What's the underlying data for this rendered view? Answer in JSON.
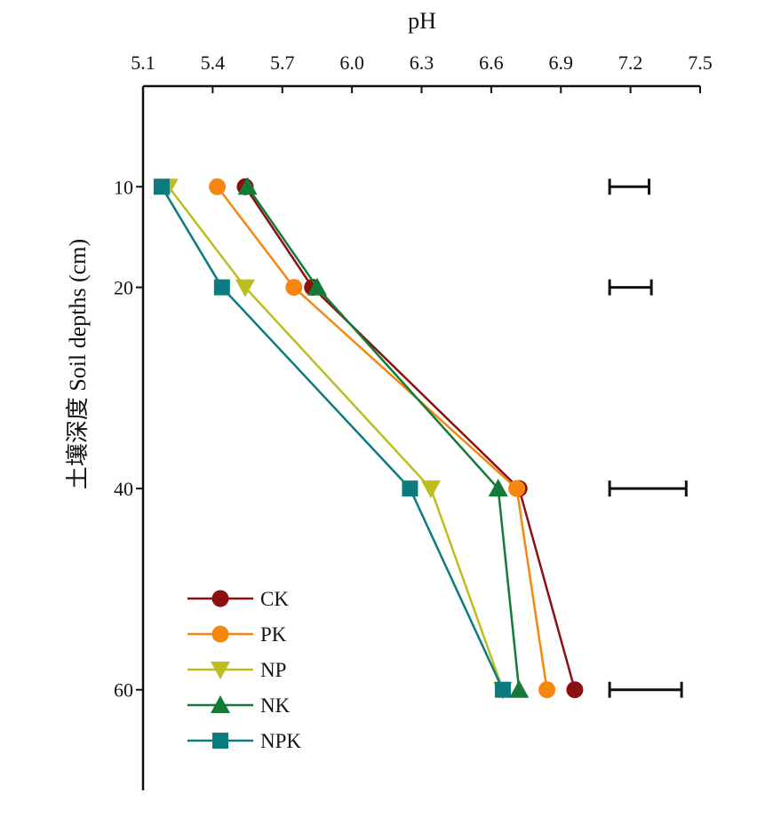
{
  "chart_data": {
    "type": "line",
    "orientation": "depth-profile",
    "x_title": "pH",
    "y_title": "土壤深度 Soil depths (cm)",
    "x_axis": {
      "position": "top",
      "range": [
        5.1,
        7.5
      ],
      "ticks": [
        5.1,
        5.4,
        5.7,
        6.0,
        6.3,
        6.6,
        6.9,
        7.2,
        7.5
      ],
      "tick_labels": [
        "5.1",
        "5.4",
        "5.7",
        "6.0",
        "6.3",
        "6.6",
        "6.9",
        "7.2",
        "7.5"
      ]
    },
    "y_axis": {
      "reversed": true,
      "range": [
        0,
        70
      ],
      "ticks": [
        10,
        20,
        40,
        60
      ],
      "tick_labels": [
        "10",
        "20",
        "40",
        "60"
      ]
    },
    "series": [
      {
        "name": "CK",
        "color": "#8B1010",
        "marker": "circle",
        "points": [
          [
            5.54,
            10
          ],
          [
            5.83,
            20
          ],
          [
            6.72,
            40
          ],
          [
            6.96,
            60
          ]
        ]
      },
      {
        "name": "PK",
        "color": "#F5870F",
        "marker": "circle",
        "points": [
          [
            5.42,
            10
          ],
          [
            5.75,
            20
          ],
          [
            6.71,
            40
          ],
          [
            6.84,
            60
          ]
        ]
      },
      {
        "name": "NP",
        "color": "#BCBE1E",
        "marker": "triangle-down",
        "points": [
          [
            5.21,
            10
          ],
          [
            5.54,
            20
          ],
          [
            6.34,
            40
          ],
          [
            6.65,
            60
          ]
        ]
      },
      {
        "name": "NK",
        "color": "#137A38",
        "marker": "triangle-up",
        "points": [
          [
            5.55,
            10
          ],
          [
            5.85,
            20
          ],
          [
            6.63,
            40
          ],
          [
            6.72,
            60
          ]
        ]
      },
      {
        "name": "NPK",
        "color": "#0B7B7E",
        "marker": "square",
        "points": [
          [
            5.18,
            10
          ],
          [
            5.44,
            20
          ],
          [
            6.25,
            40
          ],
          [
            6.65,
            60
          ]
        ]
      }
    ],
    "error_bars": [
      {
        "depth": 10,
        "from": 7.11,
        "to": 7.28
      },
      {
        "depth": 20,
        "from": 7.11,
        "to": 7.29
      },
      {
        "depth": 40,
        "from": 7.11,
        "to": 7.44
      },
      {
        "depth": 60,
        "from": 7.11,
        "to": 7.42
      }
    ],
    "legend": {
      "placement": "bottom-left",
      "entries": [
        "CK",
        "PK",
        "NP",
        "NK",
        "NPK"
      ]
    },
    "grid": false
  }
}
